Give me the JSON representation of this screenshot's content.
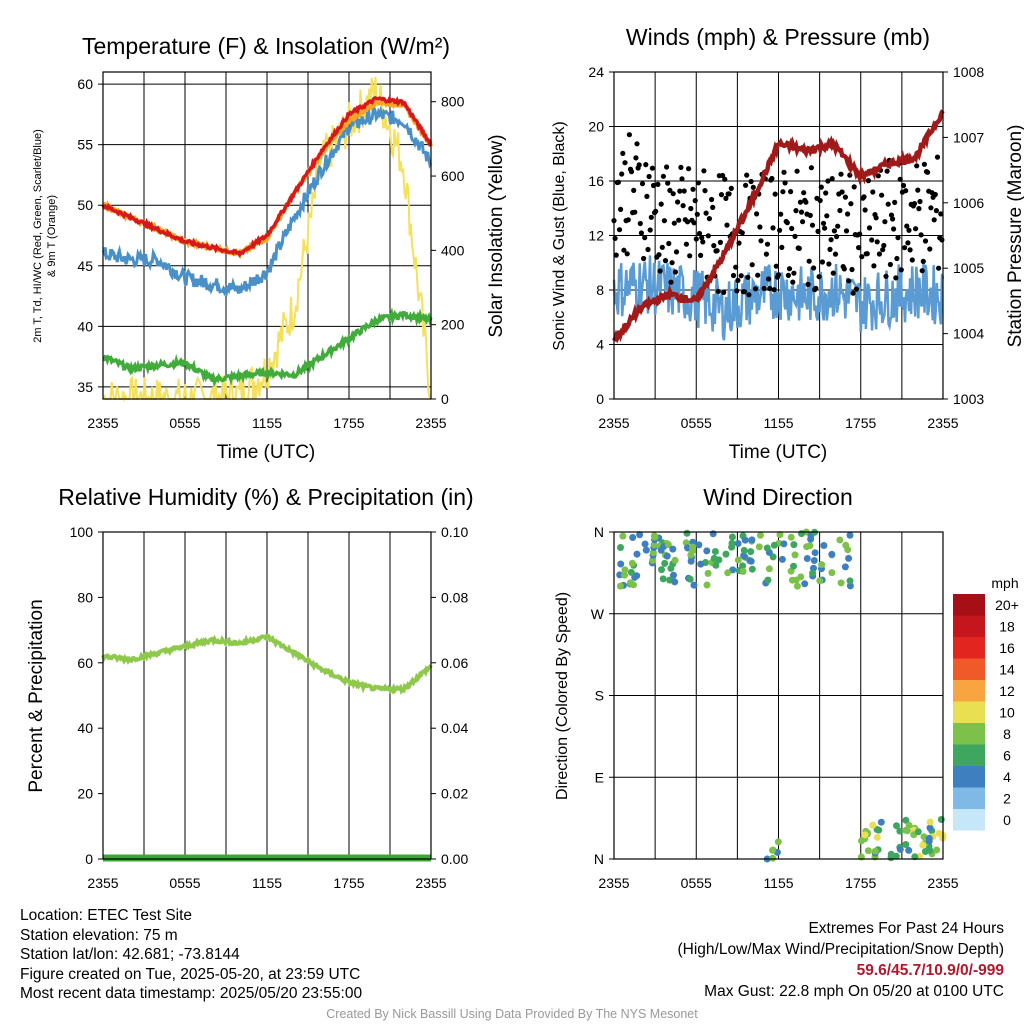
{
  "panels": {
    "temp": {
      "title": "Temperature (F) & Insolation (W/m²)",
      "xlabel": "Time (UTC)",
      "ylabel_left_lines": [
        "2m T, Td, HI/WC (Red, Green, Scarlet/Blue)",
        "& 9m T (Orange)"
      ],
      "ylabel_right": "Solar Insolation (Yellow)",
      "x_ticks": [
        "2355",
        "0555",
        "1155",
        "1755",
        "2355"
      ],
      "y_ticks_left": [
        "35",
        "40",
        "45",
        "50",
        "55",
        "60"
      ],
      "y_ticks_right": [
        "0",
        "200",
        "400",
        "600",
        "800"
      ]
    },
    "winds": {
      "title": "Winds (mph) & Pressure (mb)",
      "xlabel": "Time (UTC)",
      "ylabel_left": "Sonic Wind & Gust (Blue, Black)",
      "ylabel_right": "Station Pressure (Maroon)",
      "x_ticks": [
        "2355",
        "0555",
        "1155",
        "1755",
        "2355"
      ],
      "y_ticks_left": [
        "0",
        "4",
        "8",
        "12",
        "16",
        "20",
        "24"
      ],
      "y_ticks_right": [
        "1003",
        "1004",
        "1005",
        "1006",
        "1007",
        "1008"
      ]
    },
    "rh": {
      "title": "Relative Humidity (%) & Precipitation (in)",
      "ylabel_left": "Percent & Precipitation",
      "x_ticks": [
        "2355",
        "0555",
        "1155",
        "1755",
        "2355"
      ],
      "y_ticks_left": [
        "0",
        "20",
        "40",
        "60",
        "80",
        "100"
      ],
      "y_ticks_right": [
        "0.00",
        "0.02",
        "0.04",
        "0.06",
        "0.08",
        "0.10"
      ]
    },
    "wdir": {
      "title": "Wind Direction",
      "ylabel_left": "Direction (Colored By Speed)",
      "x_ticks": [
        "2355",
        "0555",
        "1155",
        "1755",
        "2355"
      ],
      "y_ticks_left": [
        "N",
        "E",
        "S",
        "W",
        "N"
      ],
      "legend_title": "mph",
      "legend_labels": [
        "20+",
        "18",
        "16",
        "14",
        "12",
        "10",
        "8",
        "6",
        "4",
        "2",
        "0"
      ]
    }
  },
  "colors": {
    "temp": "#d7191c",
    "heat_index": "#c51b29",
    "nine_m_temp": "#f5a623",
    "dewpoint": "#41ab3c",
    "wind_chill": "#4a90c8",
    "insolation": "#f5e05a",
    "sonic_wind": "#5a9bd4",
    "gust": "#000000",
    "pressure": "#a11a1a",
    "rh": "#8fc94b",
    "precip": "#3aa835",
    "legend_scale": [
      "#a50f15",
      "#c4161c",
      "#e2261f",
      "#f05a28",
      "#f7a541",
      "#e8df53",
      "#7cc24a",
      "#3fa65f",
      "#3e7fbf",
      "#7fb9e6",
      "#c6e6fa"
    ]
  },
  "chart_data": [
    {
      "type": "line",
      "title": "Temperature (F) & Insolation (W/m²)",
      "xlabel": "Time (UTC)",
      "x_ticks": [
        "2355",
        "0555",
        "1155",
        "1755",
        "2355"
      ],
      "x": [
        0,
        2,
        4,
        6,
        8,
        10,
        12,
        14,
        16,
        18,
        20,
        22,
        24
      ],
      "ylim": [
        34,
        61
      ],
      "y2lim": [
        0,
        880
      ],
      "series": [
        {
          "axis": "left",
          "values": [
            50,
            49,
            48,
            47,
            46.5,
            46,
            47.5,
            51,
            54.5,
            57.5,
            58.8,
            58.5,
            55
          ]
        },
        {
          "axis": "left",
          "values": [
            50,
            49,
            48,
            47,
            46.5,
            46,
            47.3,
            51,
            54.3,
            57,
            58.5,
            58.3,
            55
          ]
        },
        {
          "axis": "left",
          "values": [
            37.5,
            36.5,
            36.8,
            37,
            35.6,
            35.9,
            36.2,
            36,
            37.5,
            39,
            40.5,
            41,
            40.5
          ]
        },
        {
          "axis": "left",
          "values": [
            46,
            45.5,
            45.5,
            44,
            43.5,
            43,
            44.5,
            49,
            53,
            56.5,
            57.5,
            57,
            53.5
          ]
        },
        {
          "axis": "right",
          "values": [
            0,
            0,
            0,
            0,
            0,
            10,
            80,
            250,
            640,
            740,
            830,
            630,
            10
          ]
        }
      ]
    },
    {
      "type": "line",
      "title": "Winds (mph) & Pressure (mb)",
      "xlabel": "Time (UTC)",
      "ylabel": "Sonic Wind & Gust (Blue, Black)",
      "x_ticks": [
        "2355",
        "0555",
        "1155",
        "1755",
        "2355"
      ],
      "x": [
        0,
        2,
        4,
        6,
        8,
        10,
        12,
        14,
        16,
        18,
        20,
        22,
        24
      ],
      "ylim": [
        0,
        24
      ],
      "y2lim": [
        1003,
        1008
      ],
      "series": [
        {
          "name": "Sonic Wind & Gust (Blue, Black)",
          "axis": "left",
          "values": [
            8,
            8.5,
            8,
            7.5,
            6.5,
            7.5,
            8,
            7.5,
            8,
            7,
            7.5,
            8,
            7.5
          ]
        },
        {
          "name": "Sonic Wind & Gust (Blue, Black)",
          "axis": "left",
          "type": "scatter",
          "values": [
            15,
            15,
            12.5,
            13,
            12,
            12,
            12.5,
            12.5,
            12.5,
            12,
            13,
            13.5,
            13.5
          ]
        },
        {
          "name": "Station Pressure (Maroon)",
          "axis": "right",
          "values": [
            1003.9,
            1004.4,
            1004.6,
            1004.5,
            1005.2,
            1006,
            1006.9,
            1006.8,
            1006.9,
            1006.4,
            1006.6,
            1006.7,
            1007.4
          ]
        }
      ]
    },
    {
      "type": "line",
      "title": "Relative Humidity (%) & Precipitation (in)",
      "ylabel": "Percent & Precipitation",
      "x_ticks": [
        "2355",
        "0555",
        "1155",
        "1755",
        "2355"
      ],
      "x": [
        0,
        2,
        4,
        6,
        8,
        10,
        12,
        14,
        16,
        18,
        20,
        22,
        24
      ],
      "ylim": [
        0,
        100
      ],
      "y2lim": [
        0,
        0.1
      ],
      "series": [
        {
          "axis": "left",
          "values": [
            62,
            61,
            63,
            65,
            67,
            66,
            68,
            63,
            58,
            54,
            52,
            52,
            59
          ]
        },
        {
          "axis": "right",
          "values": [
            0,
            0,
            0,
            0,
            0,
            0,
            0,
            0,
            0,
            0,
            0,
            0,
            0
          ]
        }
      ]
    },
    {
      "type": "scatter",
      "title": "Wind Direction",
      "ylabel": "Direction (Colored By Speed)",
      "x_ticks": [
        "2355",
        "0555",
        "1155",
        "1755",
        "2355"
      ],
      "y_ticks": [
        "N",
        "E",
        "S",
        "W",
        "N"
      ],
      "ylim": [
        0,
        360
      ],
      "legend_title": "mph",
      "legend_labels": [
        "20+",
        "18",
        "16",
        "14",
        "12",
        "10",
        "8",
        "6",
        "4",
        "2",
        "0"
      ],
      "groups": [
        {
          "x_range": [
            0,
            17.5
          ],
          "direction_range": [
            300,
            360
          ],
          "typical_speed": 6
        },
        {
          "x_range": [
            11,
            12
          ],
          "direction_range": [
            0,
            20
          ],
          "typical_speed": 6
        },
        {
          "x_range": [
            18,
            24
          ],
          "direction_range": [
            0,
            45
          ],
          "typical_speed": 7
        }
      ]
    }
  ],
  "footer": {
    "location": "Location: ETEC Test Site",
    "elevation": "Station elevation: 75 m",
    "latlon": "Station lat/lon: 42.681; -73.8144",
    "created": "Figure created on Tue, 2025-05-20, at 23:59 UTC",
    "recent": "Most recent data timestamp: 2025/05/20 23:55:00",
    "extremes_title": "Extremes For Past 24 Hours",
    "extremes_fields": "(High/Low/Max Wind/Precipitation/Snow Depth)",
    "extremes_values": "59.6/45.7/10.9/0/-999",
    "max_gust": "Max Gust: 22.8 mph On 05/20 at 0100 UTC",
    "credit": "Created By Nick Bassill Using Data Provided By The NYS Mesonet"
  }
}
